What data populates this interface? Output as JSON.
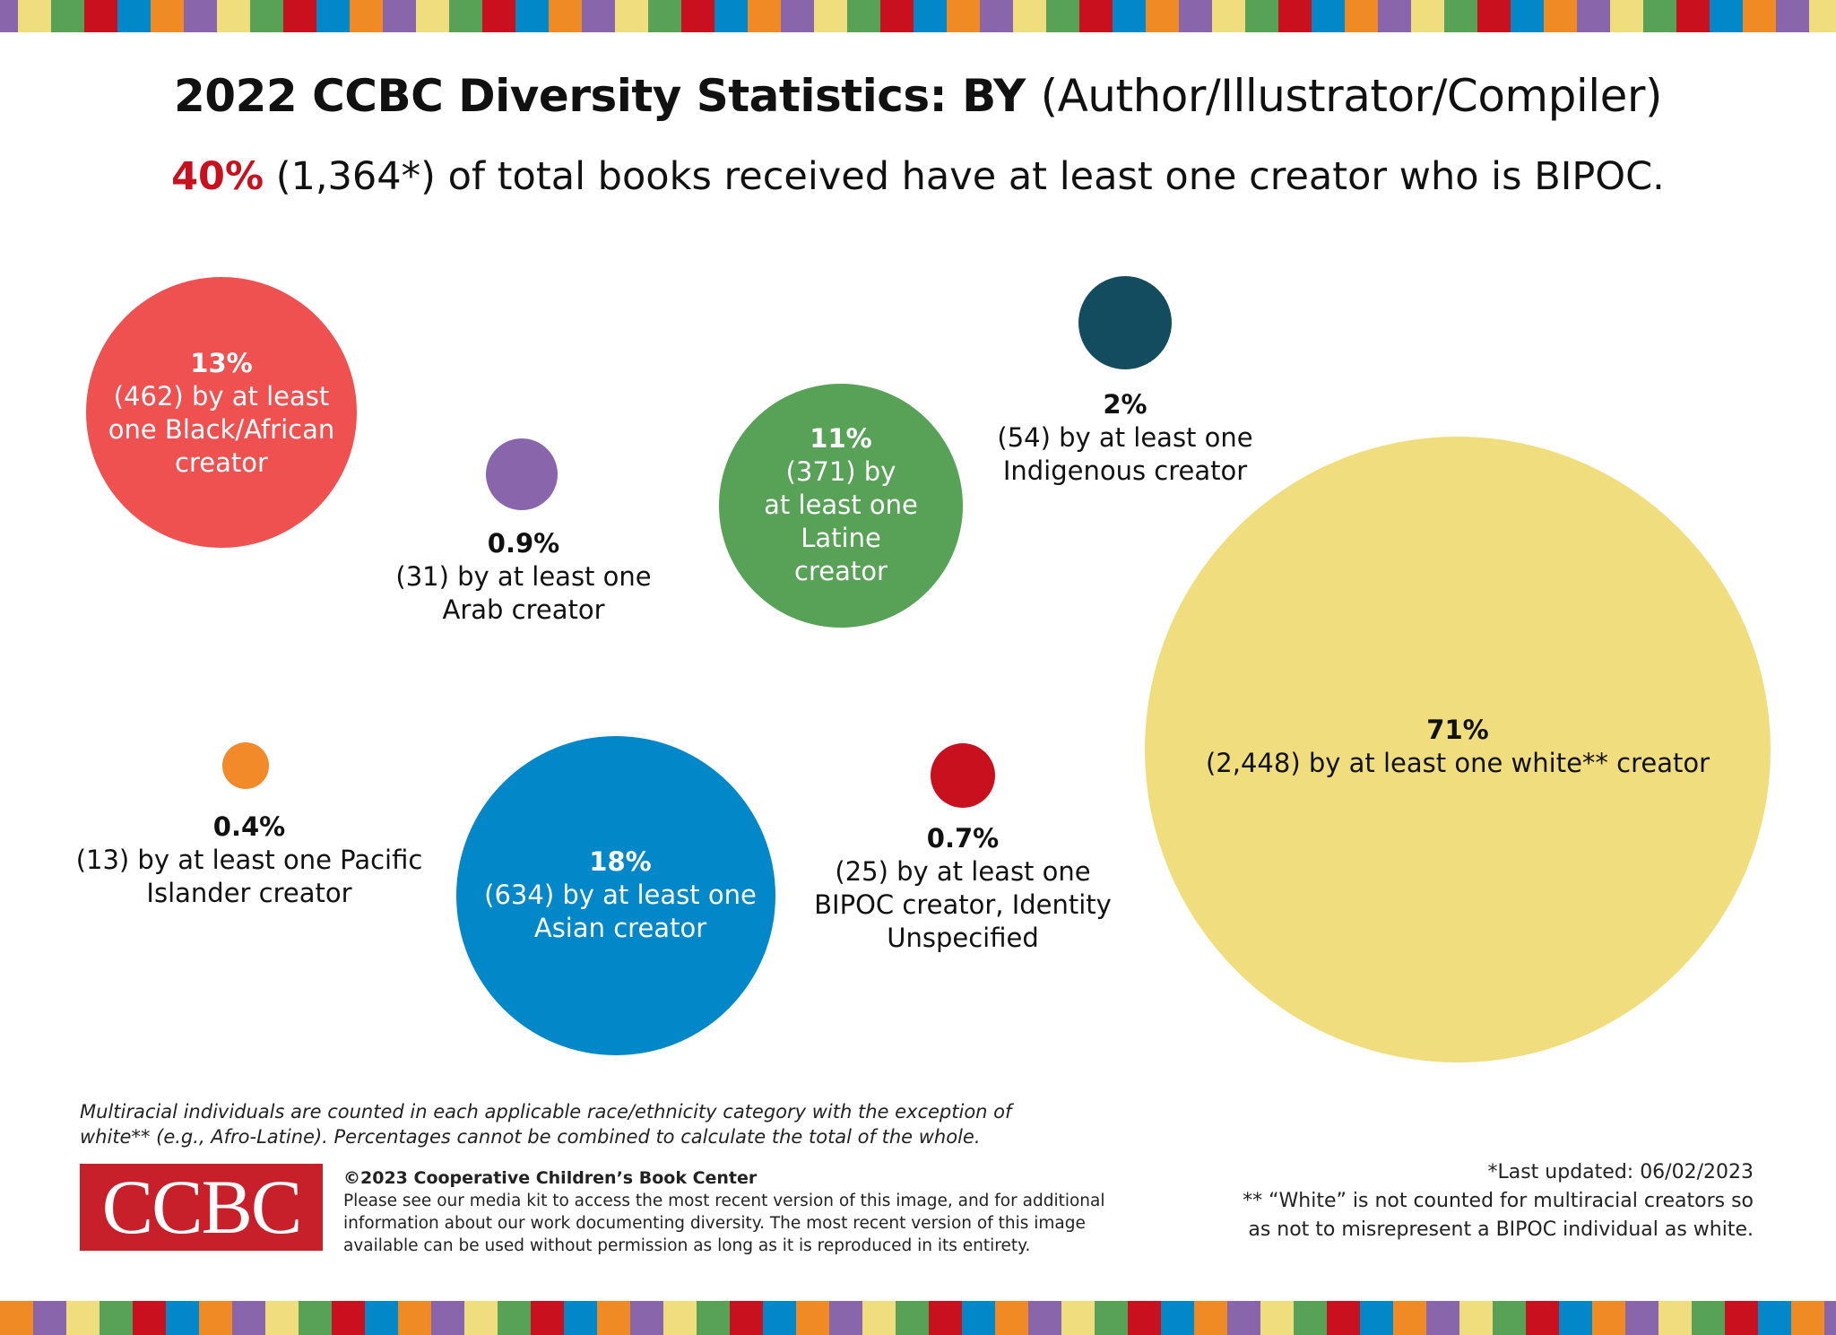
{
  "title": {
    "bold": "2022 CCBC Diversity Statistics: BY",
    "rest": "(Author/Illustrator/Compiler)"
  },
  "subtitle": {
    "percent": "40%",
    "rest": "(1,364*) of total books received have at least one creator who is BIPOC."
  },
  "stripe_colors": [
    "#F0DD7D",
    "#57A257",
    "#C8101E",
    "#0287C8",
    "#F08A24",
    "#8966AC"
  ],
  "chart_data": {
    "type": "bubble",
    "series": [
      {
        "percent": "13%",
        "count": 462,
        "label": [
          "(462) by at least",
          "one Black/African",
          "creator"
        ],
        "color": "#EF5050"
      },
      {
        "percent": "0.9%",
        "count": 31,
        "label": [
          "(31) by at least one",
          "Arab creator"
        ],
        "color": "#8966AC"
      },
      {
        "percent": "11%",
        "count": 371,
        "label": [
          "(371) by",
          "at least one",
          "Latine",
          "creator"
        ],
        "color": "#57A257"
      },
      {
        "percent": "2%",
        "count": 54,
        "label": [
          "(54) by at least one",
          "Indigenous creator"
        ],
        "color": "#134B5F"
      },
      {
        "percent": "71%",
        "count": 2448,
        "label": [
          "(2,448) by at least one white** creator"
        ],
        "color": "#F0DD7D"
      },
      {
        "percent": "0.4%",
        "count": 13,
        "label": [
          "(13) by at least one Pacific",
          "Islander creator"
        ],
        "color": "#F28A2A"
      },
      {
        "percent": "18%",
        "count": 634,
        "label": [
          "(634) by at least one",
          "Asian creator"
        ],
        "color": "#0287C8"
      },
      {
        "percent": "0.7%",
        "count": 25,
        "label": [
          "(25) by at least one",
          "BIPOC creator, Identity",
          "Unspecified"
        ],
        "color": "#C8101E"
      }
    ]
  },
  "footer": {
    "note": [
      "Multiracial individuals are counted in each applicable race/ethnicity category with the exception of",
      "white** (e.g., Afro-Latine). Percentages cannot be combined to calculate the total of the whole."
    ],
    "logo": "CCBC",
    "copyright": "©2023 Cooperative Children’s Book Center",
    "copy_lines": [
      "Please see our media kit to access the most recent version of this image, and for additional",
      "information about our work documenting diversity. The most recent version of this image",
      "available can be used without permission as long as it is reproduced in its entirety."
    ],
    "updated": "*Last updated:  06/02/2023",
    "white_note": [
      "** “White” is not counted for multiracial creators so",
      "as not to misrepresent a BIPOC individual as white."
    ]
  }
}
